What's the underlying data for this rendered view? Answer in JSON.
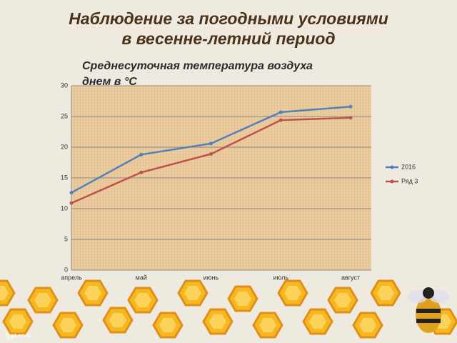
{
  "chart_data": {
    "type": "line",
    "title": [
      "Наблюдение за погодными условиями",
      "в весенне-летний период"
    ],
    "subtitle": [
      "Среднесуточная температура воздуха",
      "днем в °С"
    ],
    "categories": [
      "апрель",
      "май",
      "июнь",
      "июль",
      "август"
    ],
    "series": [
      {
        "name": "2016",
        "color": "#4f81bd",
        "values": [
          12.6,
          18.8,
          20.6,
          25.7,
          26.6
        ]
      },
      {
        "name": "Ряд 3",
        "color": "#c0504d",
        "values": [
          10.9,
          15.9,
          18.9,
          24.4,
          24.8
        ]
      }
    ],
    "ylim": [
      0,
      30
    ],
    "yticks": [
      0,
      5,
      10,
      15,
      20,
      25,
      30
    ],
    "grid": true,
    "legend": "right",
    "watermark": "fppt.com"
  }
}
